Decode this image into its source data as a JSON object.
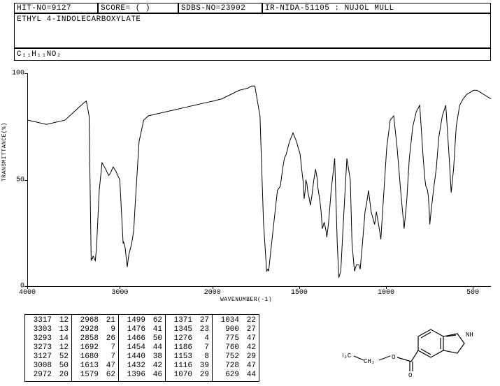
{
  "header": {
    "hit": "HIT-NO=9127",
    "score": "SCORE=   (  )",
    "sdbs": "SDBS-NO=23902",
    "ir": "IR-NIDA-51105 : NUJOL MULL",
    "compound": "ETHYL 4-INDOLECARBOXYLATE",
    "formula_html": "C₁₁H₁₁NO₂"
  },
  "plot": {
    "ylabel": "TRANSMITTANCE(%)",
    "xlabel": "WAVENUMBER(-1)",
    "xlim": [
      4000,
      400
    ],
    "ylim": [
      0,
      100
    ],
    "yticks": [
      0,
      50,
      100
    ],
    "xticks": [
      4000,
      3000,
      2000,
      1500,
      1000,
      500
    ],
    "line_color": "#000000",
    "line_width": 1,
    "background": "#ffffff",
    "spectrum": [
      [
        4000,
        78
      ],
      [
        3900,
        77
      ],
      [
        3800,
        76
      ],
      [
        3700,
        77
      ],
      [
        3600,
        78
      ],
      [
        3500,
        82
      ],
      [
        3400,
        86
      ],
      [
        3370,
        87
      ],
      [
        3340,
        80
      ],
      [
        3317,
        12
      ],
      [
        3310,
        13
      ],
      [
        3303,
        13
      ],
      [
        3298,
        14
      ],
      [
        3293,
        14
      ],
      [
        3285,
        13
      ],
      [
        3273,
        12
      ],
      [
        3260,
        18
      ],
      [
        3230,
        45
      ],
      [
        3200,
        58
      ],
      [
        3160,
        55
      ],
      [
        3140,
        53
      ],
      [
        3127,
        52
      ],
      [
        3110,
        53
      ],
      [
        3080,
        56
      ],
      [
        3050,
        54
      ],
      [
        3030,
        52
      ],
      [
        3008,
        50
      ],
      [
        2990,
        35
      ],
      [
        2972,
        20
      ],
      [
        2968,
        21
      ],
      [
        2950,
        18
      ],
      [
        2928,
        9
      ],
      [
        2910,
        15
      ],
      [
        2880,
        20
      ],
      [
        2858,
        26
      ],
      [
        2840,
        40
      ],
      [
        2800,
        68
      ],
      [
        2750,
        78
      ],
      [
        2700,
        80
      ],
      [
        2600,
        81
      ],
      [
        2500,
        82
      ],
      [
        2400,
        83
      ],
      [
        2300,
        84
      ],
      [
        2200,
        85
      ],
      [
        2100,
        86
      ],
      [
        2000,
        87
      ],
      [
        1950,
        88
      ],
      [
        1900,
        90
      ],
      [
        1850,
        92
      ],
      [
        1800,
        93
      ],
      [
        1780,
        94
      ],
      [
        1760,
        94
      ],
      [
        1730,
        80
      ],
      [
        1710,
        30
      ],
      [
        1692,
        7
      ],
      [
        1685,
        8
      ],
      [
        1680,
        7
      ],
      [
        1670,
        15
      ],
      [
        1650,
        30
      ],
      [
        1630,
        45
      ],
      [
        1613,
        47
      ],
      [
        1600,
        55
      ],
      [
        1590,
        60
      ],
      [
        1579,
        62
      ],
      [
        1560,
        68
      ],
      [
        1540,
        72
      ],
      [
        1520,
        68
      ],
      [
        1510,
        65
      ],
      [
        1499,
        62
      ],
      [
        1490,
        55
      ],
      [
        1480,
        48
      ],
      [
        1476,
        41
      ],
      [
        1470,
        45
      ],
      [
        1466,
        50
      ],
      [
        1460,
        48
      ],
      [
        1454,
        44
      ],
      [
        1448,
        42
      ],
      [
        1440,
        38
      ],
      [
        1436,
        40
      ],
      [
        1432,
        42
      ],
      [
        1420,
        50
      ],
      [
        1410,
        55
      ],
      [
        1400,
        50
      ],
      [
        1396,
        46
      ],
      [
        1385,
        40
      ],
      [
        1378,
        35
      ],
      [
        1371,
        27
      ],
      [
        1360,
        30
      ],
      [
        1350,
        26
      ],
      [
        1345,
        23
      ],
      [
        1335,
        30
      ],
      [
        1320,
        45
      ],
      [
        1300,
        60
      ],
      [
        1285,
        20
      ],
      [
        1276,
        4
      ],
      [
        1265,
        7
      ],
      [
        1250,
        30
      ],
      [
        1230,
        60
      ],
      [
        1210,
        50
      ],
      [
        1200,
        20
      ],
      [
        1186,
        7
      ],
      [
        1175,
        10
      ],
      [
        1160,
        10
      ],
      [
        1153,
        8
      ],
      [
        1140,
        20
      ],
      [
        1125,
        35
      ],
      [
        1116,
        39
      ],
      [
        1105,
        45
      ],
      [
        1090,
        35
      ],
      [
        1080,
        32
      ],
      [
        1070,
        29
      ],
      [
        1060,
        35
      ],
      [
        1045,
        28
      ],
      [
        1034,
        22
      ],
      [
        1020,
        40
      ],
      [
        1000,
        65
      ],
      [
        980,
        78
      ],
      [
        960,
        80
      ],
      [
        940,
        65
      ],
      [
        920,
        45
      ],
      [
        900,
        27
      ],
      [
        885,
        40
      ],
      [
        870,
        60
      ],
      [
        850,
        75
      ],
      [
        830,
        82
      ],
      [
        810,
        85
      ],
      [
        790,
        60
      ],
      [
        780,
        50
      ],
      [
        775,
        47
      ],
      [
        765,
        45
      ],
      [
        760,
        42
      ],
      [
        755,
        35
      ],
      [
        752,
        29
      ],
      [
        745,
        35
      ],
      [
        735,
        42
      ],
      [
        728,
        47
      ],
      [
        715,
        55
      ],
      [
        700,
        70
      ],
      [
        680,
        80
      ],
      [
        660,
        85
      ],
      [
        640,
        60
      ],
      [
        629,
        44
      ],
      [
        615,
        55
      ],
      [
        600,
        75
      ],
      [
        580,
        85
      ],
      [
        560,
        88
      ],
      [
        540,
        90
      ],
      [
        520,
        91
      ],
      [
        500,
        92
      ],
      [
        480,
        92
      ],
      [
        460,
        91
      ],
      [
        440,
        90
      ],
      [
        420,
        89
      ],
      [
        400,
        88
      ]
    ]
  },
  "peaks": [
    [
      [
        3317,
        12
      ],
      [
        3303,
        13
      ],
      [
        3293,
        14
      ],
      [
        3273,
        12
      ],
      [
        3127,
        52
      ],
      [
        3008,
        50
      ],
      [
        2972,
        20
      ]
    ],
    [
      [
        2968,
        21
      ],
      [
        2928,
        9
      ],
      [
        2858,
        26
      ],
      [
        1692,
        7
      ],
      [
        1680,
        7
      ],
      [
        1613,
        47
      ],
      [
        1579,
        62
      ]
    ],
    [
      [
        1499,
        62
      ],
      [
        1476,
        41
      ],
      [
        1466,
        50
      ],
      [
        1454,
        44
      ],
      [
        1440,
        38
      ],
      [
        1432,
        42
      ],
      [
        1396,
        46
      ]
    ],
    [
      [
        1371,
        27
      ],
      [
        1345,
        23
      ],
      [
        1276,
        4
      ],
      [
        1186,
        7
      ],
      [
        1153,
        8
      ],
      [
        1116,
        39
      ],
      [
        1070,
        29
      ]
    ],
    [
      [
        1034,
        22
      ],
      [
        900,
        27
      ],
      [
        775,
        47
      ],
      [
        760,
        42
      ],
      [
        752,
        29
      ],
      [
        728,
        47
      ],
      [
        629,
        44
      ]
    ]
  ],
  "molecule": {
    "label_ch3": "H₃C",
    "label_ch2": "CH₂",
    "label_o1": "O",
    "label_o2": "O",
    "label_nh": "NH"
  },
  "style": {
    "font": "Courier New",
    "font_size_header": 11,
    "font_size_table": 11,
    "font_size_axis_label": 8,
    "font_size_tick": 10,
    "border_color": "#000000",
    "text_color": "#000000"
  }
}
